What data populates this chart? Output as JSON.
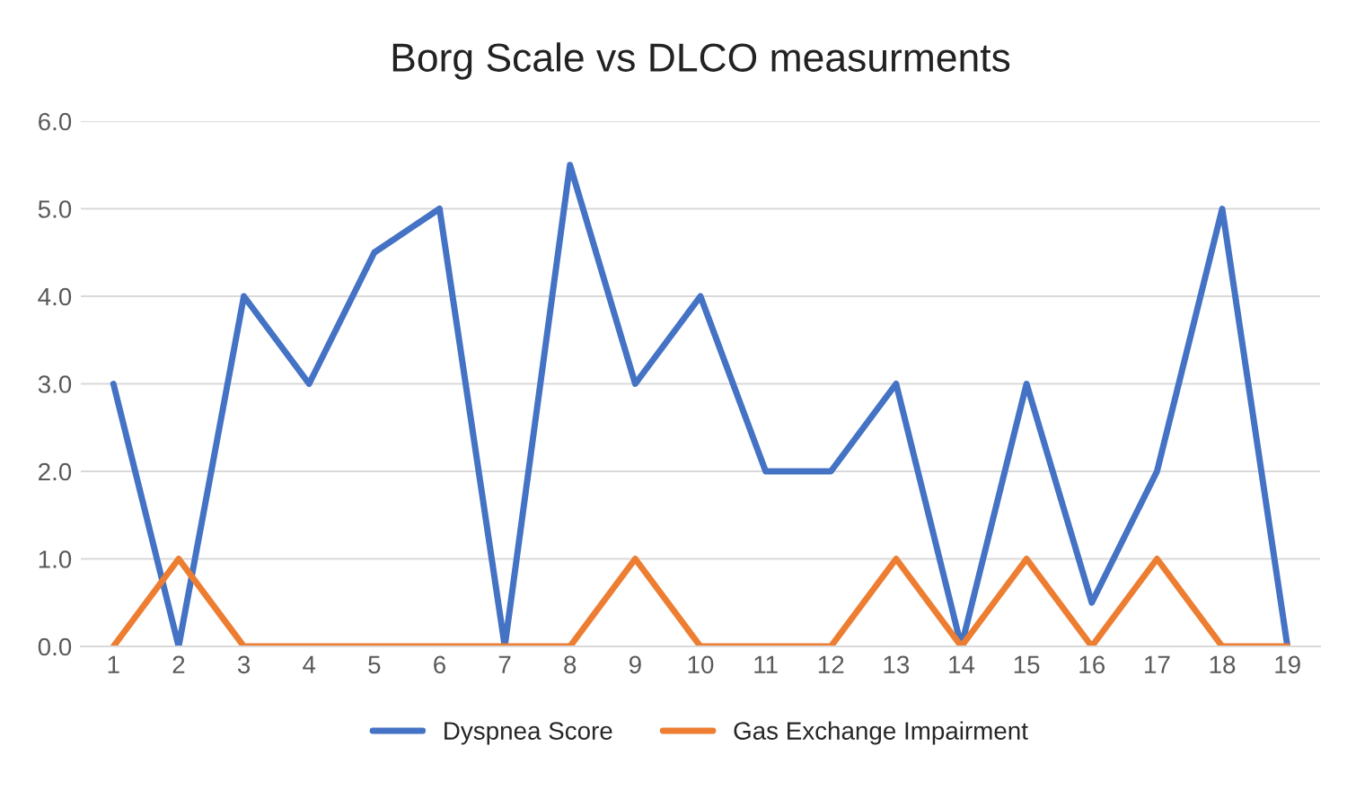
{
  "chart_data": {
    "type": "line",
    "title": "Borg Scale vs DLCO measurments",
    "categories": [
      "1",
      "2",
      "3",
      "4",
      "5",
      "6",
      "7",
      "8",
      "9",
      "10",
      "11",
      "12",
      "13",
      "14",
      "15",
      "16",
      "17",
      "18",
      "19"
    ],
    "series": [
      {
        "name": "Dyspnea Score",
        "color": "#4472c4",
        "values": [
          3,
          0,
          4,
          3,
          4.5,
          5,
          0,
          5.5,
          3,
          4,
          2,
          2,
          3,
          0,
          3,
          0.5,
          2,
          5,
          0
        ]
      },
      {
        "name": "Gas Exchange Impairment",
        "color": "#ed7d31",
        "values": [
          0,
          1,
          0,
          0,
          0,
          0,
          0,
          0,
          1,
          0,
          0,
          0,
          1,
          0,
          1,
          0,
          1,
          0,
          0
        ]
      }
    ],
    "ylim": [
      0,
      6
    ],
    "yticks": [
      {
        "value": 0,
        "label": "0.0"
      },
      {
        "value": 1,
        "label": "1.0"
      },
      {
        "value": 2,
        "label": "2.0"
      },
      {
        "value": 3,
        "label": "3.0"
      },
      {
        "value": 4,
        "label": "4.0"
      },
      {
        "value": 5,
        "label": "5.0"
      },
      {
        "value": 6,
        "label": "6.0"
      }
    ],
    "grid": "y",
    "legend": "bottom",
    "marker": "none",
    "line_style": "solid"
  }
}
